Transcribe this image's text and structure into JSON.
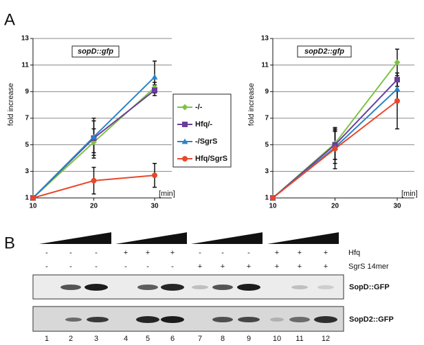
{
  "panel_a_label": "A",
  "chart_data": [
    {
      "type": "line",
      "title": "sopD::gfp",
      "ylabel": "fold increase",
      "xunit": "[min]",
      "x": [
        10,
        20,
        30
      ],
      "xlim": [
        10,
        30
      ],
      "xticks": [
        10,
        20,
        30
      ],
      "ylim": [
        1,
        13
      ],
      "yticks": [
        1,
        3,
        5,
        7,
        9,
        11,
        13
      ],
      "grid": true,
      "series": [
        {
          "name": "-/-",
          "color": "#7dc242",
          "marker": "diamond",
          "values": [
            1,
            5.2,
            9.3
          ],
          "errors": [
            0,
            1.0,
            0.4
          ]
        },
        {
          "name": "Hfq/-",
          "color": "#6a3d9a",
          "marker": "square",
          "values": [
            1,
            5.5,
            9.1
          ],
          "errors": [
            0,
            1.5,
            0.4
          ]
        },
        {
          "name": "-/SgrS",
          "color": "#2b83c6",
          "marker": "triangle",
          "values": [
            1,
            5.6,
            10.1
          ],
          "errors": [
            0,
            1.2,
            1.2
          ]
        },
        {
          "name": "Hfq/SgrS",
          "color": "#e8472a",
          "marker": "circle",
          "values": [
            1,
            2.3,
            2.7
          ],
          "errors": [
            0,
            1.0,
            0.9
          ]
        }
      ]
    },
    {
      "type": "line",
      "title": "sopD2::gfp",
      "ylabel": "fold increase",
      "xunit": "[min]",
      "x": [
        10,
        20,
        30
      ],
      "xlim": [
        10,
        30
      ],
      "xticks": [
        10,
        20,
        30
      ],
      "ylim": [
        1,
        13
      ],
      "yticks": [
        1,
        3,
        5,
        7,
        9,
        11,
        13
      ],
      "grid": true,
      "series": [
        {
          "color": "#7dc242",
          "marker": "diamond",
          "values": [
            1,
            5.1,
            11.2
          ],
          "errors": [
            0,
            1.2,
            1.0
          ]
        },
        {
          "color": "#6a3d9a",
          "marker": "square",
          "values": [
            1,
            5.0,
            9.9
          ],
          "errors": [
            0,
            1.1,
            0.5
          ]
        },
        {
          "color": "#2b83c6",
          "marker": "triangle",
          "values": [
            1,
            4.8,
            9.2
          ],
          "errors": [
            0,
            1.2,
            0.8
          ]
        },
        {
          "color": "#e8472a",
          "marker": "circle",
          "values": [
            1,
            4.7,
            8.3
          ],
          "errors": [
            0,
            1.5,
            2.1
          ]
        }
      ]
    }
  ],
  "panel_b": {
    "label": "B",
    "rows": [
      {
        "name": "Hfq",
        "signs": [
          "-",
          "-",
          "-",
          "+",
          "+",
          "+",
          "-",
          "-",
          "-",
          "+",
          "+",
          "+"
        ]
      },
      {
        "name": "SgrS 14mer",
        "signs": [
          "-",
          "-",
          "-",
          "-",
          "-",
          "-",
          "+",
          "+",
          "+",
          "+",
          "+",
          "+"
        ]
      }
    ],
    "blots": [
      "SopD::GFP",
      "SopD2::GFP"
    ],
    "lanes": [
      1,
      2,
      3,
      4,
      5,
      6,
      7,
      8,
      9,
      10,
      11,
      12
    ]
  }
}
